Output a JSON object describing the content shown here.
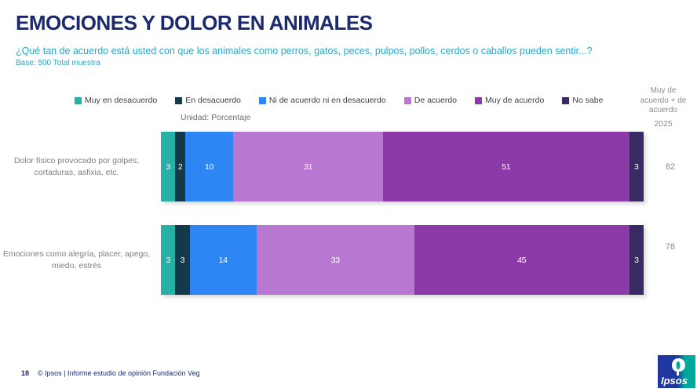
{
  "header": {
    "title": "EMOCIONES Y DOLOR EN ANIMALES",
    "subtitle": "¿Qué tan de acuerdo está usted con que los animales como perros, gatos, peces, pulpos, pollos, cerdos o caballos pueden sentir...?",
    "base": "Base: 500 Total muestra"
  },
  "unit_label": "Unidad: Porcentaje",
  "right_column": {
    "header": "Muy de acuerdo + de acuerdo",
    "year": "2025"
  },
  "chart_data": {
    "type": "bar",
    "orientation": "horizontal-stacked",
    "unit": "percent",
    "xlim": [
      0,
      100
    ],
    "grid": false,
    "legend_position": "top",
    "categories": [
      "Dolor físico provocado por golpes, cortaduras, asfixia, etc.",
      "Emociones como alegría, placer, apego, miedo, estrés"
    ],
    "series": [
      {
        "name": "Muy en desacuerdo",
        "color": "#29b0a6",
        "values": [
          3,
          3
        ]
      },
      {
        "name": "En desacuerdo",
        "color": "#14394b",
        "values": [
          2,
          3
        ]
      },
      {
        "name": "Ni de acuerdo ni en desacuerdo",
        "color": "#2e86f5",
        "values": [
          10,
          14
        ]
      },
      {
        "name": "De acuerdo",
        "color": "#b878d2",
        "values": [
          31,
          33
        ]
      },
      {
        "name": "Muy de acuerdo",
        "color": "#8b3aa7",
        "values": [
          51,
          45
        ]
      },
      {
        "name": "No sabe",
        "color": "#392a64",
        "values": [
          3,
          3
        ]
      }
    ],
    "totals_agree": [
      82,
      78
    ],
    "value_label_color": "#ffffff"
  },
  "footer": {
    "page": "18",
    "copyright": "© Ipsos | Informe estudio de opinión Fundación Veg",
    "logo_text": "Ipsos"
  },
  "colors": {
    "title": "#1b2a6e",
    "subtitle": "#27a7c8",
    "row_label": "#7f7f7f",
    "logo_blue": "#2137a0",
    "logo_teal": "#00a79c"
  }
}
